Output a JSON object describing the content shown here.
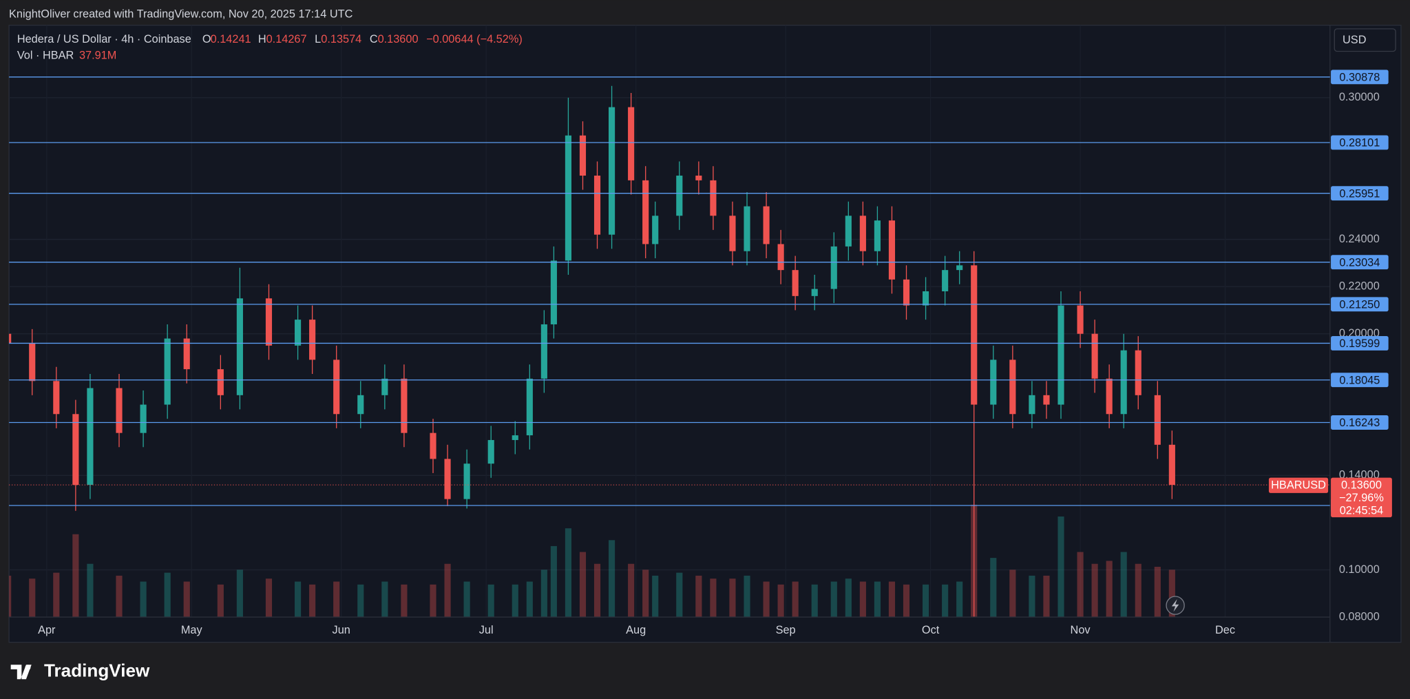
{
  "header": "KnightOliver created with TradingView.com, Nov 20, 2025 17:14 UTC",
  "footer": "TradingView",
  "chart_data": {
    "type": "candlestick",
    "legend": {
      "symbol": "Hedera / US Dollar · 4h · Coinbase",
      "o_label": "O",
      "o": "0.14241",
      "h_label": "H",
      "h": "0.14267",
      "l_label": "L",
      "l": "0.13574",
      "c_label": "C",
      "c": "0.13600",
      "change": "−0.00644 (−4.52%)",
      "vol_label": "Vol · HBAR",
      "vol": "37.91M"
    },
    "currency": "USD",
    "price_tag": {
      "symbol": "HBARUSD",
      "price": {
        "value": 0.136,
        "label": "0.13600"
      },
      "change": "−27.96%",
      "countdown": "02:45:54"
    },
    "up_color": "#26a69a",
    "down_color": "#ef5350",
    "level_color": "#5b9cf0",
    "x": [
      -8,
      -3,
      2,
      6,
      9,
      15,
      20,
      25,
      29,
      36,
      40,
      46,
      52,
      55,
      60,
      65,
      70,
      74,
      80,
      83,
      87,
      92,
      97,
      100,
      103,
      105,
      108,
      111,
      114,
      117,
      121,
      124,
      126,
      131,
      135,
      138,
      142,
      145,
      149,
      152,
      155,
      159,
      163,
      166,
      169,
      172,
      175,
      178,
      182,
      186,
      189,
      192,
      196,
      200,
      204,
      207,
      210,
      214,
      217,
      220,
      223,
      226,
      230,
      233
    ],
    "open": [
      0.2,
      0.196,
      0.18,
      0.166,
      0.136,
      0.177,
      0.158,
      0.17,
      0.198,
      0.185,
      0.174,
      0.215,
      0.195,
      0.206,
      0.189,
      0.166,
      0.174,
      0.181,
      0.158,
      0.147,
      0.13,
      0.145,
      0.155,
      0.157,
      0.181,
      0.204,
      0.231,
      0.284,
      0.267,
      0.242,
      0.296,
      0.265,
      0.238,
      0.25,
      0.267,
      0.265,
      0.25,
      0.235,
      0.254,
      0.238,
      0.227,
      0.216,
      0.219,
      0.237,
      0.25,
      0.235,
      0.248,
      0.223,
      0.212,
      0.218,
      0.227,
      0.229,
      0.17,
      0.189,
      0.166,
      0.174,
      0.17,
      0.212,
      0.2,
      0.181,
      0.166,
      0.193,
      0.174,
      0.153
    ],
    "high": [
      0.206,
      0.202,
      0.186,
      0.172,
      0.183,
      0.183,
      0.176,
      0.204,
      0.204,
      0.191,
      0.228,
      0.221,
      0.212,
      0.212,
      0.195,
      0.18,
      0.187,
      0.187,
      0.164,
      0.153,
      0.151,
      0.161,
      0.163,
      0.187,
      0.21,
      0.237,
      0.3,
      0.29,
      0.273,
      0.305,
      0.302,
      0.271,
      0.256,
      0.273,
      0.273,
      0.271,
      0.256,
      0.26,
      0.26,
      0.244,
      0.233,
      0.225,
      0.243,
      0.256,
      0.256,
      0.254,
      0.254,
      0.229,
      0.224,
      0.233,
      0.235,
      0.235,
      0.195,
      0.195,
      0.18,
      0.18,
      0.218,
      0.218,
      0.206,
      0.187,
      0.2,
      0.199,
      0.18,
      0.159
    ],
    "low": [
      0.19,
      0.174,
      0.16,
      0.125,
      0.13,
      0.152,
      0.152,
      0.164,
      0.179,
      0.168,
      0.168,
      0.189,
      0.189,
      0.183,
      0.16,
      0.16,
      0.168,
      0.152,
      0.141,
      0.127,
      0.126,
      0.139,
      0.149,
      0.151,
      0.175,
      0.198,
      0.225,
      0.261,
      0.236,
      0.236,
      0.259,
      0.232,
      0.232,
      0.244,
      0.259,
      0.244,
      0.229,
      0.229,
      0.232,
      0.221,
      0.21,
      0.21,
      0.213,
      0.231,
      0.229,
      0.229,
      0.217,
      0.206,
      0.206,
      0.212,
      0.221,
      0.08,
      0.164,
      0.16,
      0.16,
      0.164,
      0.164,
      0.194,
      0.175,
      0.16,
      0.16,
      0.168,
      0.147,
      0.13
    ],
    "close": [
      0.196,
      0.18,
      0.166,
      0.136,
      0.177,
      0.158,
      0.17,
      0.198,
      0.185,
      0.174,
      0.215,
      0.195,
      0.206,
      0.189,
      0.166,
      0.174,
      0.181,
      0.158,
      0.147,
      0.13,
      0.145,
      0.155,
      0.157,
      0.181,
      0.204,
      0.231,
      0.284,
      0.267,
      0.242,
      0.296,
      0.265,
      0.238,
      0.25,
      0.267,
      0.265,
      0.25,
      0.235,
      0.254,
      0.238,
      0.227,
      0.216,
      0.219,
      0.237,
      0.25,
      0.235,
      0.248,
      0.223,
      0.212,
      0.218,
      0.227,
      0.229,
      0.17,
      0.189,
      0.166,
      0.174,
      0.17,
      0.212,
      0.2,
      0.181,
      0.166,
      0.193,
      0.174,
      0.153,
      0.136
    ],
    "volume": [
      70,
      65,
      75,
      140,
      90,
      70,
      60,
      75,
      60,
      55,
      80,
      65,
      60,
      55,
      60,
      55,
      60,
      55,
      55,
      90,
      60,
      55,
      55,
      60,
      80,
      120,
      150,
      110,
      90,
      130,
      90,
      80,
      70,
      75,
      70,
      65,
      65,
      70,
      60,
      55,
      60,
      55,
      60,
      65,
      60,
      60,
      60,
      55,
      55,
      55,
      60,
      190,
      100,
      80,
      70,
      70,
      170,
      110,
      90,
      95,
      110,
      90,
      85,
      80
    ],
    "y2lim": [
      0,
      1000
    ],
    "xlim": [
      -7.8,
      265.7
    ],
    "xticks": [
      {
        "value": 0,
        "label": "Apr"
      },
      {
        "value": 30,
        "label": "May"
      },
      {
        "value": 61,
        "label": "Jun"
      },
      {
        "value": 91,
        "label": "Jul"
      },
      {
        "value": 122,
        "label": "Aug"
      },
      {
        "value": 153,
        "label": "Sep"
      },
      {
        "value": 183,
        "label": "Oct"
      },
      {
        "value": 214,
        "label": "Nov"
      },
      {
        "value": 244,
        "label": "Dec"
      }
    ],
    "ylim": [
      0.08,
      0.3307
    ],
    "yticks": [
      {
        "value": 0.08,
        "label": "0.08000"
      },
      {
        "value": 0.1,
        "label": "0.10000"
      },
      {
        "value": 0.14,
        "label": "0.14000"
      },
      {
        "value": 0.2,
        "label": "0.20000"
      },
      {
        "value": 0.22,
        "label": "0.22000"
      },
      {
        "value": 0.24,
        "label": "0.24000"
      },
      {
        "value": 0.3,
        "label": "0.30000"
      }
    ],
    "levels": [
      0.30878,
      0.28101,
      0.25951,
      0.23034,
      {
        "value": 0.2125,
        "label": "0.21250"
      },
      0.19599,
      0.18045,
      0.16243,
      0.12728
    ]
  }
}
